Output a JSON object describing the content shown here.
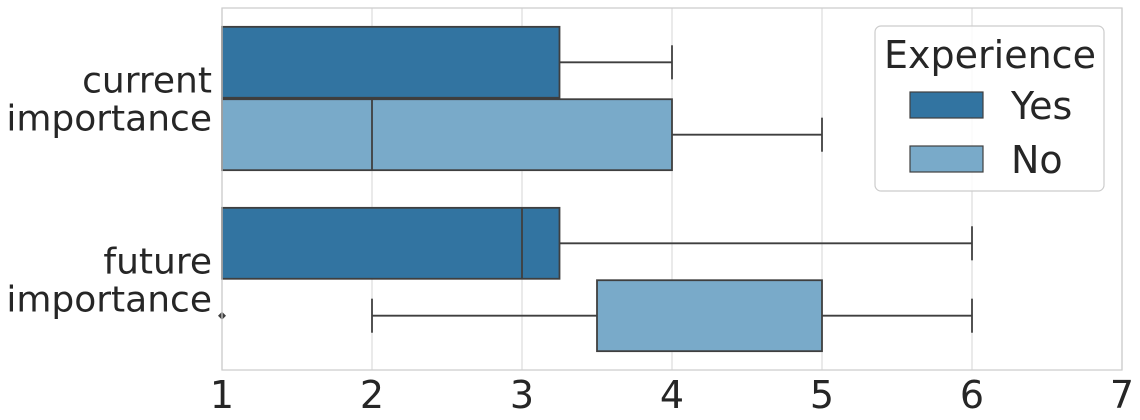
{
  "chart_data": {
    "type": "boxplot",
    "orientation": "horizontal",
    "title": "",
    "xlabel": "",
    "ylabel": "",
    "xlim": [
      1,
      7
    ],
    "xticks": [
      "1",
      "2",
      "3",
      "4",
      "5",
      "6",
      "7"
    ],
    "grid": true,
    "categories": [
      {
        "lines": [
          "current",
          "importance"
        ]
      },
      {
        "lines": [
          "future",
          "importance"
        ]
      }
    ],
    "legend": {
      "title": "Experience",
      "placement": "top-right",
      "entries": [
        "Yes",
        "No"
      ]
    },
    "series": [
      {
        "name": "Yes",
        "color": "#3274a1",
        "boxes": [
          {
            "min": 1,
            "q1": 1,
            "median": 1,
            "q3": 3.25,
            "max": 4
          },
          {
            "min": 1,
            "q1": 1,
            "median": 3,
            "q3": 3.25,
            "max": 6
          }
        ]
      },
      {
        "name": "No",
        "color": "#79aac9",
        "boxes": [
          {
            "min": 1,
            "q1": 1,
            "median": 2,
            "q3": 4,
            "max": 5
          },
          {
            "min": 2,
            "q1": 3.5,
            "median": 5,
            "q3": 5,
            "max": 6,
            "outliers": [
              1
            ]
          }
        ]
      }
    ]
  }
}
